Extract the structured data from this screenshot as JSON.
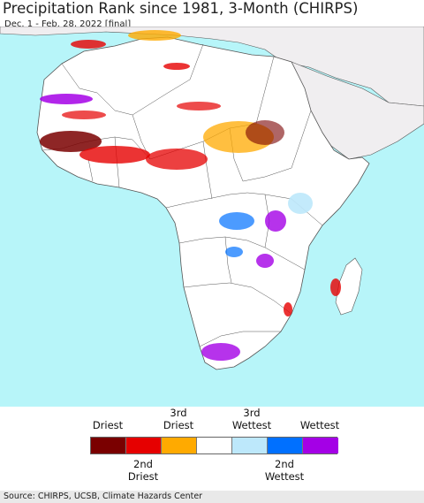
{
  "title": "Precipitation Rank since 1981, 3-Month (CHIRPS)",
  "subtitle": "Dec. 1 - Feb. 28, 2022 [final]",
  "colors": {
    "ocean": "#b7f5f9",
    "land": "#ffffff",
    "outside_land": "#f0eef0",
    "border": "#555555"
  },
  "legend": {
    "top_labels": [
      "Driest",
      "3rd\nDriest",
      "3rd\nWettest",
      "Wettest"
    ],
    "bottom_labels": [
      "2nd\nDriest",
      "2nd\nWettest"
    ],
    "classes": [
      {
        "color": "#7a0000"
      },
      {
        "color": "#e60000"
      },
      {
        "color": "#ffaa00"
      },
      {
        "color": "#ffffff"
      },
      {
        "color": "#bde8fb"
      },
      {
        "color": "#0070ff"
      },
      {
        "color": "#a400e6"
      }
    ]
  },
  "source": "Source: CHIRPS, UCSB, Climate Hazards Center"
}
